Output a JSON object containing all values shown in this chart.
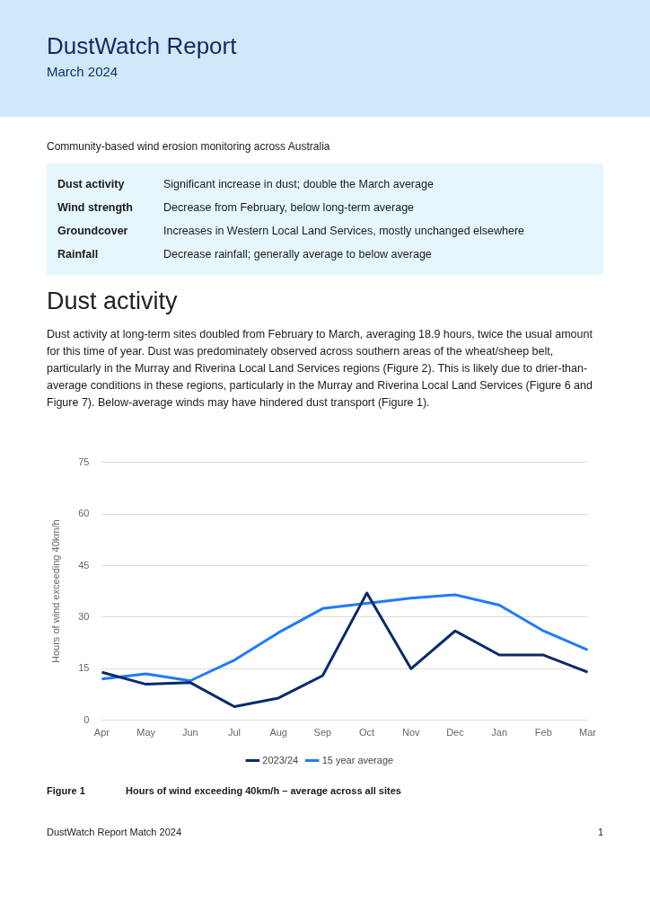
{
  "chart_data": {
    "type": "line",
    "title": "DustWatch Report",
    "subtitle": "March 2024",
    "ylabel": "Hours of wind exceeding 40km/h",
    "categories": [
      "Apr",
      "May",
      "Jun",
      "Jul",
      "Aug",
      "Sep",
      "Oct",
      "Nov",
      "Dec",
      "Jan",
      "Feb",
      "Mar"
    ],
    "series": [
      {
        "name": "2023/24",
        "color": "#0c2a6a",
        "values": [
          14,
          10.5,
          11,
          4,
          6.5,
          13,
          37,
          15,
          26,
          19,
          19,
          14
        ]
      },
      {
        "name": "15 year average",
        "color": "#1f7aff",
        "values": [
          12,
          13.5,
          11.5,
          17.5,
          25.5,
          32.5,
          34,
          35.5,
          36.5,
          33.5,
          26,
          20.5
        ]
      }
    ],
    "ylim": [
      0,
      75
    ],
    "yticks": [
      0,
      15,
      30,
      45,
      60,
      75
    ],
    "grid": "y",
    "legend": "bottom",
    "marker": "none",
    "line_style": "solid",
    "annotations": [
      "Community-based wind erosion monitoring across Australia",
      "Dust activity",
      "Significant increase in dust; double the March average",
      "Wind strength",
      "Decrease from February, below long-term average",
      "Groundcover",
      "Increases in Western Local Land Services, mostly unchanged elsewhere",
      "Rainfall",
      "Decrease rainfall; generally average to below average",
      "Dust activity",
      "Dust activity at long-term sites doubled from February to March, averaging 18.9 hours, twice the usual amount for this time of year. Dust was predominately observed across southern areas of the wheat/sheep belt, particularly in the Murray and Riverina Local Land Services regions (Figure 2). This is likely due to drier-than-average conditions in these regions, particularly in the Murray and Riverina Local Land Services (Figure 6 and Figure 7). Below-average winds may have hindered dust transport (Figure 1).",
      "Figure 1",
      "Hours of wind exceeding 40km/h – average across all sites",
      "DustWatch Report Match 2024",
      "1"
    ]
  }
}
